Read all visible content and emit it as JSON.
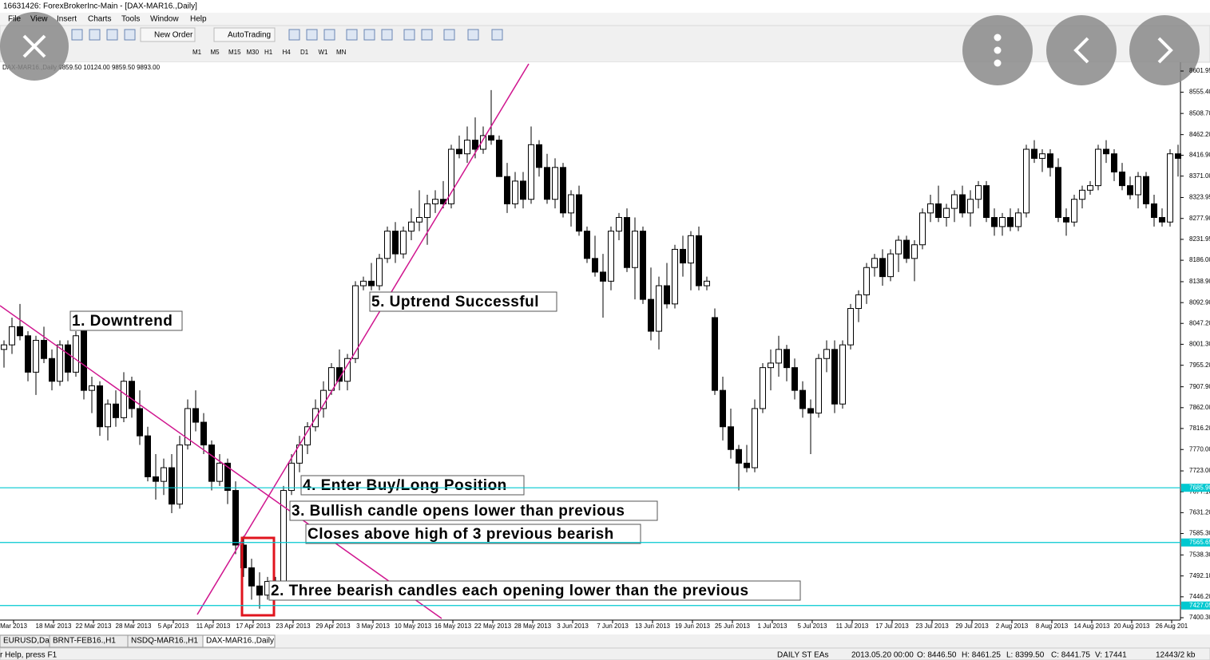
{
  "window": {
    "title": "16631426: ForexBrokerInc-Main - [DAX-MAR16.,Daily]"
  },
  "menu": [
    "File",
    "View",
    "Insert",
    "Charts",
    "Tools",
    "Window",
    "Help"
  ],
  "toolbar": {
    "buttons": [
      "New Order",
      "AutoTrading"
    ],
    "timeframes": [
      "M1",
      "M5",
      "M15",
      "M30",
      "H1",
      "H4",
      "D1",
      "W1",
      "MN"
    ]
  },
  "chart_data": {
    "type": "candlestick",
    "title": "DAX-MAR16.,Daily 9859.50 10124.00 9859.50 9893.00",
    "bull_color": "#ffffff",
    "bear_color": "#000000",
    "trendline_color": "#d0168f",
    "level_color": "#00c8d0",
    "ylim": [
      7400.3,
      8601.95
    ],
    "yticks": [
      {
        "value": 8601.95,
        "label": "8601.95"
      },
      {
        "value": 8555.4,
        "label": "8555.40"
      },
      {
        "value": 8508.7,
        "label": "8508.70"
      },
      {
        "value": 8462.2,
        "label": "8462.20"
      },
      {
        "value": 8416.9,
        "label": "8416.90"
      },
      {
        "value": 8371,
        "label": "8371.00"
      },
      8323.95,
      {
        "value": 8277.9,
        "label": "8277.90"
      },
      8231.95,
      {
        "value": 8186,
        "label": "8186.00"
      },
      {
        "value": 8138.9,
        "label": "8138.90"
      },
      {
        "value": 8092.9,
        "label": "8092.90"
      },
      {
        "value": 8047.2,
        "label": "8047.20"
      },
      {
        "value": 8001.3,
        "label": "8001.30"
      },
      {
        "value": 7955.2,
        "label": "7955.20"
      },
      {
        "value": 7907.9,
        "label": "7907.90"
      },
      {
        "value": 7862,
        "label": "7862.00"
      },
      {
        "value": 7816.2,
        "label": "7816.20"
      },
      {
        "value": 7770,
        "label": "7770.00"
      },
      {
        "value": 7723,
        "label": "7723.00"
      },
      {
        "value": 7677.1,
        "label": "7677.10"
      },
      {
        "value": 7631.2,
        "label": "7631.20"
      },
      {
        "value": 7585.3,
        "label": "7585.30"
      },
      {
        "value": 7538.3,
        "label": "7538.30"
      },
      {
        "value": 7492.1,
        "label": "7492.10"
      },
      {
        "value": 7446.2,
        "label": "7446.20"
      },
      {
        "value": 7400.3,
        "label": "7400.30"
      }
    ],
    "levels": [
      {
        "value": 7685.9,
        "label": "7685.90"
      },
      {
        "value": 7565.65,
        "label": "7565.65"
      },
      {
        "value": 7427.05,
        "label": "7427.05"
      }
    ],
    "x_labels": [
      "Mar 2013",
      "18 Mar 2013",
      "22 Mar 2013",
      "28 Mar 2013",
      "5 Apr 2013",
      "11 Apr 2013",
      "17 Apr 2013",
      "23 Apr 2013",
      "29 Apr 2013",
      "3 May 2013",
      "10 May 2013",
      "16 May 2013",
      "22 May 2013",
      "28 May 2013",
      "3 Jun 2013",
      "7 Jun 2013",
      "13 Jun 2013",
      "19 Jun 2013",
      "25 Jun 2013",
      "1 Jul 2013",
      "5 Jul 2013",
      "11 Jul 2013",
      "17 Jul 2013",
      "23 Jul 2013",
      "29 Jul 2013",
      "2 Aug 2013",
      "8 Aug 2013",
      "14 Aug 2013",
      "20 Aug 2013",
      "26 Aug 201"
    ],
    "annotations": [
      "1. Downtrend",
      "5. Uptrend Successful",
      "4. Enter Buy/Long Position",
      "3. Bullish candle opens lower than previous",
      "Closes above high of 3 previous bearish",
      "2. Three bearish candles each opening lower than the previous"
    ],
    "ohlc": [
      [
        7990,
        8010,
        7950,
        8000
      ],
      [
        8000,
        8060,
        7980,
        8040
      ],
      [
        8040,
        8090,
        8010,
        8020
      ],
      [
        8020,
        8030,
        7920,
        7940
      ],
      [
        7940,
        8020,
        7890,
        8010
      ],
      [
        8010,
        8040,
        7960,
        7970
      ],
      [
        7970,
        7990,
        7900,
        7920
      ],
      [
        7920,
        8010,
        7910,
        8000
      ],
      [
        8000,
        8010,
        7920,
        7940
      ],
      [
        7940,
        8030,
        7930,
        8020
      ],
      [
        8030,
        8040,
        7880,
        7900
      ],
      [
        7900,
        7930,
        7850,
        7910
      ],
      [
        7910,
        7920,
        7800,
        7820
      ],
      [
        7820,
        7880,
        7790,
        7870
      ],
      [
        7870,
        7900,
        7820,
        7840
      ],
      [
        7840,
        7940,
        7830,
        7920
      ],
      [
        7920,
        7930,
        7840,
        7860
      ],
      [
        7860,
        7900,
        7780,
        7800
      ],
      [
        7800,
        7820,
        7700,
        7710
      ],
      [
        7710,
        7760,
        7660,
        7700
      ],
      [
        7700,
        7750,
        7670,
        7730
      ],
      [
        7730,
        7760,
        7630,
        7650
      ],
      [
        7650,
        7800,
        7640,
        7780
      ],
      [
        7780,
        7880,
        7770,
        7860
      ],
      [
        7860,
        7900,
        7810,
        7830
      ],
      [
        7830,
        7850,
        7760,
        7780
      ],
      [
        7780,
        7790,
        7680,
        7700
      ],
      [
        7700,
        7760,
        7690,
        7740
      ],
      [
        7740,
        7750,
        7650,
        7680
      ],
      [
        7680,
        7700,
        7540,
        7560
      ],
      [
        7560,
        7580,
        7490,
        7510
      ],
      [
        7510,
        7530,
        7440,
        7470
      ],
      [
        7470,
        7500,
        7420,
        7450
      ],
      [
        7450,
        7490,
        7440,
        7480
      ],
      [
        7480,
        7490,
        7440,
        7470
      ],
      [
        7470,
        7690,
        7460,
        7680
      ],
      [
        7680,
        7760,
        7670,
        7740
      ],
      [
        7740,
        7800,
        7720,
        7780
      ],
      [
        7780,
        7830,
        7760,
        7820
      ],
      [
        7820,
        7880,
        7810,
        7860
      ],
      [
        7860,
        7920,
        7840,
        7900
      ],
      [
        7900,
        7960,
        7890,
        7950
      ],
      [
        7950,
        7990,
        7900,
        7920
      ],
      [
        7920,
        7980,
        7900,
        7970
      ],
      [
        7970,
        8140,
        7960,
        8130
      ],
      [
        8130,
        8150,
        8120,
        8140
      ],
      [
        8140,
        8180,
        8120,
        8130
      ],
      [
        8130,
        8200,
        8120,
        8190
      ],
      [
        8190,
        8260,
        8180,
        8250
      ],
      [
        8250,
        8270,
        8180,
        8200
      ],
      [
        8200,
        8260,
        8190,
        8250
      ],
      [
        8250,
        8300,
        8230,
        8270
      ],
      [
        8270,
        8340,
        8250,
        8280
      ],
      [
        8280,
        8330,
        8220,
        8310
      ],
      [
        8310,
        8340,
        8290,
        8320
      ],
      [
        8320,
        8360,
        8300,
        8310
      ],
      [
        8310,
        8440,
        8300,
        8430
      ],
      [
        8430,
        8460,
        8410,
        8420
      ],
      [
        8420,
        8480,
        8400,
        8450
      ],
      [
        8450,
        8500,
        8410,
        8430
      ],
      [
        8430,
        8480,
        8420,
        8460
      ],
      [
        8460,
        8560,
        8440,
        8450
      ],
      [
        8450,
        8460,
        8370,
        8370
      ],
      [
        8370,
        8400,
        8290,
        8310
      ],
      [
        8310,
        8380,
        8300,
        8360
      ],
      [
        8360,
        8380,
        8300,
        8320
      ],
      [
        8320,
        8480,
        8310,
        8440
      ],
      [
        8440,
        8450,
        8370,
        8390
      ],
      [
        8390,
        8420,
        8310,
        8320
      ],
      [
        8320,
        8410,
        8300,
        8390
      ],
      [
        8390,
        8400,
        8280,
        8290
      ],
      [
        8290,
        8340,
        8260,
        8330
      ],
      [
        8330,
        8350,
        8240,
        8250
      ],
      [
        8250,
        8260,
        8180,
        8190
      ],
      [
        8190,
        8240,
        8150,
        8160
      ],
      [
        8160,
        8200,
        8060,
        8140
      ],
      [
        8140,
        8260,
        8120,
        8250
      ],
      [
        8250,
        8290,
        8230,
        8280
      ],
      [
        8280,
        8300,
        8160,
        8170
      ],
      [
        8170,
        8280,
        8100,
        8250
      ],
      [
        8250,
        8260,
        8090,
        8100
      ],
      [
        8100,
        8170,
        8010,
        8030
      ],
      [
        8030,
        8150,
        7990,
        8130
      ],
      [
        8130,
        8180,
        8080,
        8090
      ],
      [
        8090,
        8220,
        8080,
        8210
      ],
      [
        8210,
        8240,
        8150,
        8180
      ],
      [
        8180,
        8250,
        8120,
        8240
      ],
      [
        8240,
        8260,
        8120,
        8130
      ],
      [
        8130,
        8150,
        8120,
        8140
      ],
      [
        8060,
        8080,
        7890,
        7900
      ],
      [
        7900,
        7930,
        7790,
        7820
      ],
      [
        7820,
        7860,
        7750,
        7770
      ],
      [
        7770,
        7780,
        7680,
        7740
      ],
      [
        7740,
        7780,
        7720,
        7730
      ],
      [
        7730,
        7880,
        7720,
        7860
      ],
      [
        7860,
        7960,
        7850,
        7950
      ],
      [
        7950,
        7990,
        7900,
        7960
      ],
      [
        7960,
        8020,
        7930,
        7990
      ],
      [
        7990,
        8000,
        7920,
        7950
      ],
      [
        7950,
        7970,
        7880,
        7900
      ],
      [
        7900,
        7920,
        7840,
        7860
      ],
      [
        7860,
        7880,
        7760,
        7850
      ],
      [
        7850,
        7980,
        7840,
        7970
      ],
      [
        7970,
        8010,
        7940,
        7990
      ],
      [
        7990,
        8010,
        7850,
        7870
      ],
      [
        7870,
        8010,
        7860,
        8000
      ],
      [
        8000,
        8090,
        7990,
        8080
      ],
      [
        8080,
        8120,
        8050,
        8110
      ],
      [
        8110,
        8180,
        8090,
        8170
      ],
      [
        8170,
        8200,
        8150,
        8190
      ],
      [
        8190,
        8210,
        8130,
        8150
      ],
      [
        8150,
        8210,
        8140,
        8200
      ],
      [
        8200,
        8240,
        8160,
        8230
      ],
      [
        8230,
        8240,
        8180,
        8190
      ],
      [
        8190,
        8230,
        8140,
        8220
      ],
      [
        8220,
        8300,
        8210,
        8290
      ],
      [
        8290,
        8330,
        8270,
        8310
      ],
      [
        8310,
        8350,
        8270,
        8280
      ],
      [
        8280,
        8310,
        8260,
        8300
      ],
      [
        8300,
        8340,
        8270,
        8330
      ],
      [
        8330,
        8350,
        8280,
        8290
      ],
      [
        8290,
        8340,
        8260,
        8320
      ],
      [
        8320,
        8360,
        8300,
        8350
      ],
      [
        8350,
        8360,
        8270,
        8280
      ],
      [
        8280,
        8300,
        8240,
        8260
      ],
      [
        8260,
        8290,
        8240,
        8280
      ],
      [
        8280,
        8300,
        8250,
        8260
      ],
      [
        8260,
        8300,
        8250,
        8290
      ],
      [
        8290,
        8440,
        8280,
        8430
      ],
      [
        8430,
        8450,
        8400,
        8410
      ],
      [
        8410,
        8430,
        8380,
        8420
      ],
      [
        8420,
        8430,
        8370,
        8390
      ],
      [
        8390,
        8410,
        8270,
        8280
      ],
      [
        8280,
        8300,
        8240,
        8270
      ],
      [
        8270,
        8330,
        8260,
        8320
      ],
      [
        8320,
        8350,
        8300,
        8340
      ],
      [
        8340,
        8360,
        8330,
        8350
      ],
      [
        8350,
        8440,
        8340,
        8430
      ],
      [
        8430,
        8450,
        8400,
        8420
      ],
      [
        8420,
        8430,
        8360,
        8380
      ],
      [
        8380,
        8400,
        8340,
        8350
      ],
      [
        8350,
        8370,
        8320,
        8330
      ],
      [
        8330,
        8380,
        8300,
        8370
      ],
      [
        8370,
        8380,
        8300,
        8310
      ],
      [
        8310,
        8330,
        8260,
        8280
      ],
      [
        8280,
        8300,
        8260,
        8270
      ],
      [
        8270,
        8430,
        8260,
        8420
      ],
      [
        8420,
        8440,
        8370,
        8410
      ]
    ]
  },
  "tabs": [
    "EURUSD,Daily",
    "BRNT-FEB16.,H1",
    "NSDQ-MAR16.,H1",
    "DAX-MAR16.,Daily"
  ],
  "status": [
    "r Help, press F1",
    "DAILY ST EAs",
    "2013.05.20 00:00",
    "O: 8446.50",
    "H: 8461.25",
    "L: 8399.50",
    "C: 8441.75",
    "V: 17441",
    "12443/2 kb"
  ]
}
